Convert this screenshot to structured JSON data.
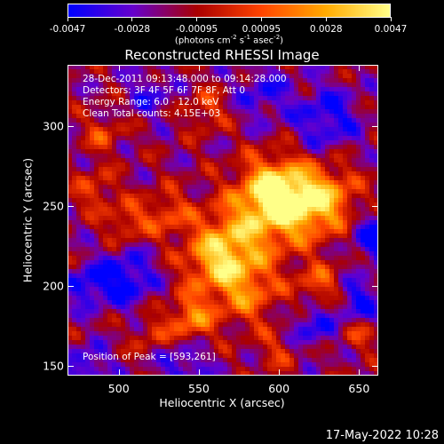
{
  "chart_data": {
    "type": "heatmap",
    "title": "Reconstructed RHESSI Image",
    "xlabel": "Heliocentric X (arcsec)",
    "ylabel": "Heliocentric Y (arcsec)",
    "xlim": [
      468,
      662
    ],
    "ylim": [
      144,
      338
    ],
    "x_ticks": [
      500,
      550,
      600,
      650
    ],
    "y_ticks": [
      150,
      200,
      250,
      300
    ],
    "colorbar": {
      "ticks": [
        "-0.0047",
        "-0.0028",
        "-0.00095",
        "0.00095",
        "0.0028",
        "0.0047"
      ],
      "unit": "(photons cm",
      "unit_exp1": "-2",
      "unit_mid": " s",
      "unit_exp2": "-1",
      "unit_mid2": " asec",
      "unit_exp3": "-2",
      "unit_end": ")",
      "range": [
        -0.0047,
        0.0047
      ],
      "colormap": [
        "#0000ff",
        "#6600cc",
        "#aa0000",
        "#ff4400",
        "#ffaa00",
        "#ffff88"
      ]
    },
    "annotations": {
      "time": "28-Dec-2011 09:13:48.000 to 09:14:28.000",
      "detectors": "Detectors: 3F 4F 5F 6F 7F 8F, Att 0",
      "energy": "Energy Range: 6.0 - 12.0 keV",
      "clean": "Clean    Total counts: 4.15E+03",
      "peak": "Position of Peak = [593,261]"
    },
    "peak": [
      593,
      261
    ],
    "blobs": [
      {
        "x": 595,
        "y": 260,
        "amp": 1.0,
        "r": 14
      },
      {
        "x": 610,
        "y": 250,
        "amp": 0.9,
        "r": 16
      },
      {
        "x": 575,
        "y": 230,
        "amp": 0.75,
        "r": 18
      },
      {
        "x": 560,
        "y": 215,
        "amp": 0.7,
        "r": 14
      },
      {
        "x": 630,
        "y": 255,
        "amp": 0.7,
        "r": 14
      },
      {
        "x": 545,
        "y": 180,
        "amp": 0.75,
        "r": 10
      },
      {
        "x": 580,
        "y": 195,
        "amp": 0.6,
        "r": 14
      },
      {
        "x": 530,
        "y": 245,
        "amp": 0.5,
        "r": 10
      },
      {
        "x": 505,
        "y": 240,
        "amp": 0.5,
        "r": 9
      },
      {
        "x": 485,
        "y": 260,
        "amp": 0.45,
        "r": 9
      },
      {
        "x": 555,
        "y": 310,
        "amp": 0.45,
        "r": 9
      },
      {
        "x": 490,
        "y": 295,
        "amp": 0.45,
        "r": 8
      },
      {
        "x": 625,
        "y": 200,
        "amp": 0.55,
        "r": 10
      },
      {
        "x": 650,
        "y": 170,
        "amp": 0.4,
        "r": 8
      },
      {
        "x": 600,
        "y": 160,
        "amp": 0.35,
        "r": 9
      },
      {
        "x": 520,
        "y": 170,
        "amp": 0.35,
        "r": 8
      },
      {
        "x": 505,
        "y": 205,
        "amp": -0.7,
        "r": 12
      },
      {
        "x": 630,
        "y": 305,
        "amp": -0.6,
        "r": 14
      },
      {
        "x": 660,
        "y": 230,
        "amp": -0.7,
        "r": 10
      },
      {
        "x": 650,
        "y": 190,
        "amp": -0.6,
        "r": 10
      },
      {
        "x": 620,
        "y": 175,
        "amp": -0.55,
        "r": 10
      },
      {
        "x": 540,
        "y": 150,
        "amp": -0.5,
        "r": 10
      },
      {
        "x": 480,
        "y": 200,
        "amp": -0.6,
        "r": 9
      },
      {
        "x": 480,
        "y": 150,
        "amp": -0.55,
        "r": 9
      },
      {
        "x": 590,
        "y": 320,
        "amp": -0.45,
        "r": 12
      },
      {
        "x": 520,
        "y": 320,
        "amp": -0.4,
        "r": 10
      }
    ]
  },
  "footer": {
    "date": "17-May-2022 10:28"
  }
}
